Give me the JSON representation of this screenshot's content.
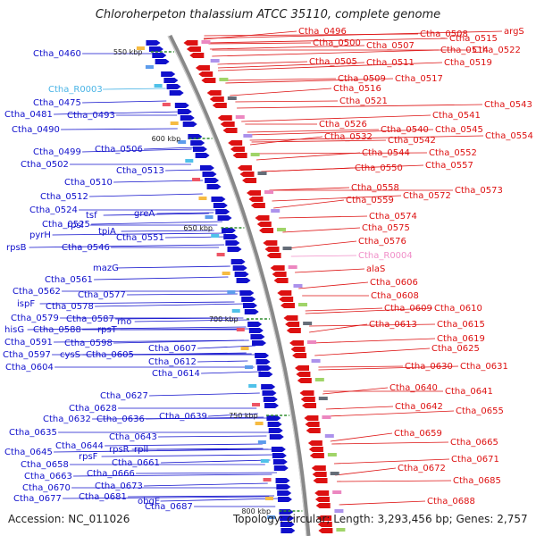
{
  "title": "Chloroherpeton thalassium ATCC 35110, complete genome",
  "footer": {
    "accession": "Accession: NC_011026",
    "topology": "Topology: circular; Length: 3,293,456 bp; Genes: 2,757"
  },
  "colors": {
    "forward_strand": "#1010cc",
    "reverse_strand": "#dd1111",
    "rna_forward": "#4ab4e6",
    "rna_reverse": "#f08ec8",
    "backbone": "#888888",
    "tick": "#2e8b2e"
  },
  "kbp_ticks": [
    "550 kbp",
    "600 kbp",
    "650 kbp",
    "700 kbp",
    "750 kbp",
    "800 kbp"
  ],
  "left_labels": [
    "Ctha_0460",
    "Ctha_R0003",
    "Ctha_0475",
    "Ctha_0481",
    "Ctha_0493",
    "Ctha_0490",
    "Ctha_0506",
    "Ctha_0499",
    "Ctha_0502",
    "Ctha_0513",
    "Ctha_0510",
    "Ctha_0512",
    "Ctha_0524",
    "greA",
    "tsf",
    "Ctha_0525",
    "rpsI",
    "tpiA",
    "pyrH",
    "rpsB",
    "Ctha_0546",
    "Ctha_0551",
    "mazG",
    "Ctha_0561",
    "Ctha_0562",
    "Ctha_0577",
    "ispF",
    "Ctha_0578",
    "Ctha_0579",
    "Ctha_0587",
    "rho",
    "hisG",
    "Ctha_0588",
    "rpsT",
    "Ctha_0591",
    "Ctha_0598",
    "Ctha_0597",
    "cysS",
    "Ctha_0605",
    "Ctha_0607",
    "Ctha_0604",
    "Ctha_0612",
    "Ctha_0614",
    "Ctha_0627",
    "Ctha_0628",
    "Ctha_0632",
    "Ctha_0636",
    "Ctha_0639",
    "Ctha_0635",
    "Ctha_0643",
    "Ctha_0644",
    "Ctha_0645",
    "rpsR",
    "rplI",
    "rpsF",
    "Ctha_0661",
    "Ctha_0658",
    "Ctha_0666",
    "Ctha_0663",
    "Ctha_0673",
    "Ctha_0670",
    "Ctha_0681",
    "Ctha_0677",
    "obgE",
    "Ctha_0687"
  ],
  "right_labels": [
    "Ctha_0496",
    "Ctha_0508",
    "Ctha_0515",
    "argS",
    "Ctha_0500",
    "Ctha_0507",
    "Ctha_0514",
    "Ctha_0522",
    "Ctha_0505",
    "Ctha_0511",
    "Ctha_0519",
    "Ctha_0509",
    "Ctha_0517",
    "Ctha_0516",
    "Ctha_0521",
    "Ctha_0543",
    "Ctha_0541",
    "Ctha_0526",
    "Ctha_0540",
    "Ctha_0545",
    "Ctha_0532",
    "Ctha_0542",
    "Ctha_0554",
    "Ctha_0544",
    "Ctha_0552",
    "Ctha_0550",
    "Ctha_0557",
    "Ctha_0573",
    "Ctha_0558",
    "Ctha_0572",
    "Ctha_0559",
    "Ctha_0574",
    "Ctha_0575",
    "Ctha_0576",
    "Ctha_R0004",
    "alaS",
    "Ctha_0606",
    "Ctha_0608",
    "Ctha_0609",
    "Ctha_0610",
    "Ctha_0613",
    "Ctha_0615",
    "Ctha_0619",
    "Ctha_0625",
    "Ctha_0630",
    "Ctha_0631",
    "Ctha_0640",
    "Ctha_0641",
    "Ctha_0642",
    "Ctha_0655",
    "Ctha_0659",
    "Ctha_0665",
    "Ctha_0671",
    "Ctha_0672",
    "Ctha_0685",
    "Ctha_0688"
  ],
  "rna_labels": [
    "Ctha_R0003",
    "Ctha_R0004"
  ]
}
